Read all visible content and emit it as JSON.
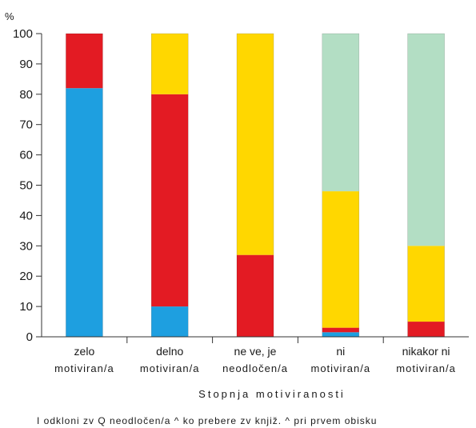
{
  "chart_data": {
    "type": "bar",
    "stacked": true,
    "ylabel": "%",
    "xlabel": "Stopnja motiviranosti",
    "ylim": [
      0,
      100
    ],
    "yticks": [
      0,
      10,
      20,
      30,
      40,
      50,
      60,
      70,
      80,
      90,
      100
    ],
    "grid": false,
    "categories": [
      [
        "zelo",
        "motiviran/a"
      ],
      [
        "delno",
        "motiviran/a"
      ],
      [
        "ne ve, je",
        "neodločen/a"
      ],
      [
        "ni",
        "motiviran/a"
      ],
      [
        "nikakor ni",
        "motiviran/a"
      ]
    ],
    "series": [
      {
        "color": "#1E9FE0",
        "values": [
          82,
          10,
          0,
          1.5,
          0
        ]
      },
      {
        "color": "#E31B23",
        "values": [
          18,
          70,
          27,
          1.5,
          5
        ]
      },
      {
        "color": "#FFD700",
        "values": [
          0,
          20,
          73,
          45,
          25
        ]
      },
      {
        "color": "#B3DEC4",
        "values": [
          0,
          0,
          0,
          52,
          70
        ]
      }
    ],
    "legend_text": "I odkloni zv  Q neodločen/a  ^ ko prebere zv knjiž. ^ pri prvem obisku"
  }
}
